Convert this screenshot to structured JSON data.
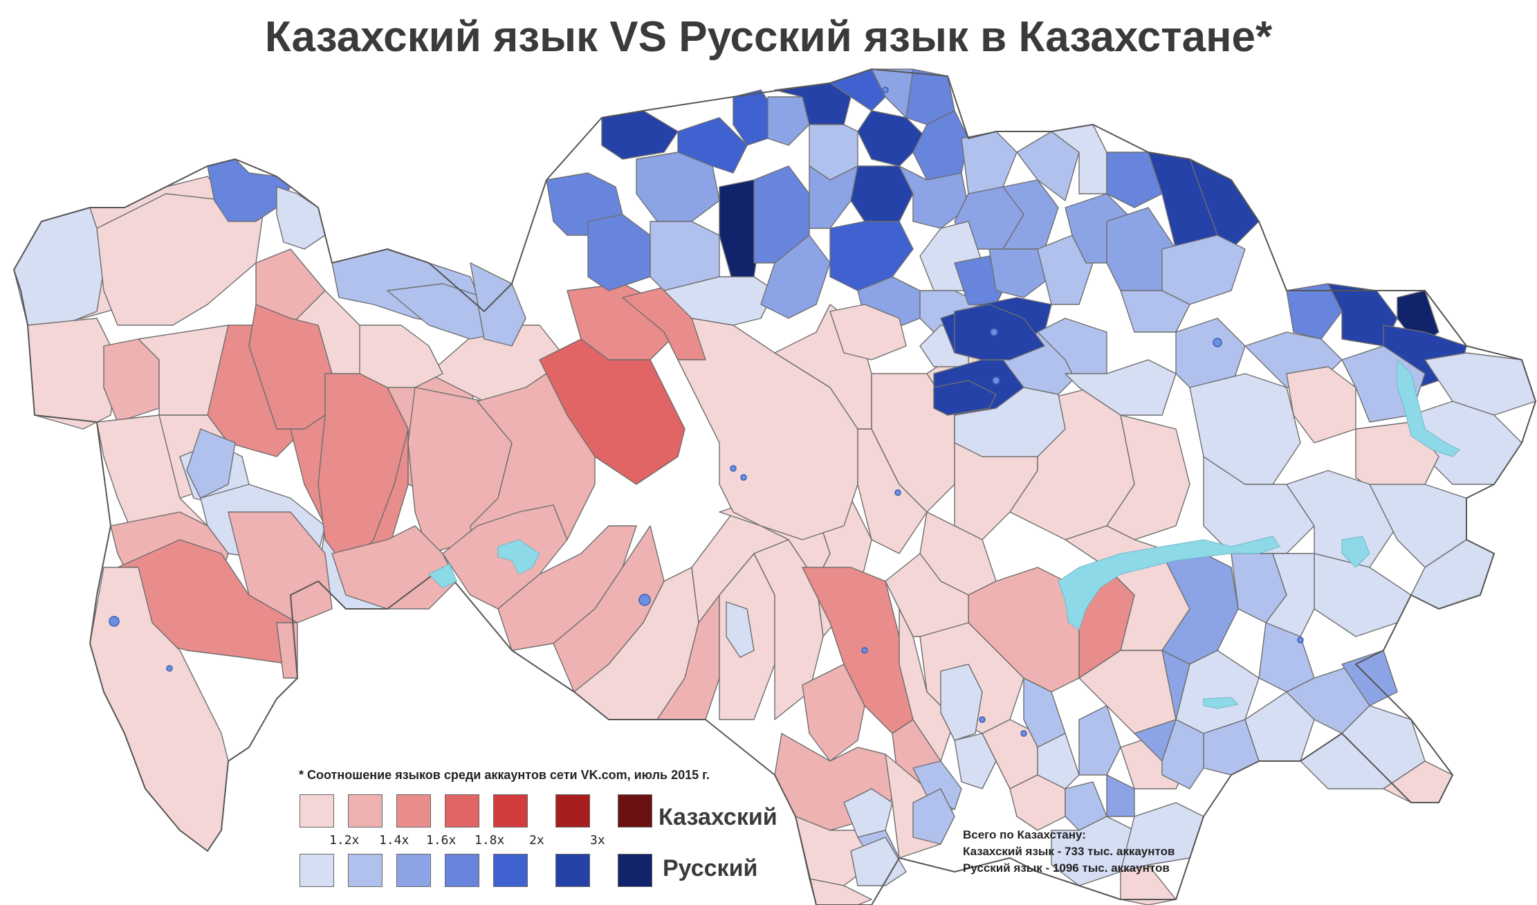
{
  "title": "Казахский язык VS Русский язык в Казахстане*",
  "footnote": "* Соотношение языков среди аккаунтов сети VK.com, июль 2015 г.",
  "legend": {
    "kazakh_label": "Казахский",
    "russian_label": "Русский",
    "thresholds": [
      "1.2x",
      "1.4x",
      "1.6x",
      "1.8x",
      "2x",
      "3x"
    ],
    "kazakh_colors": [
      "#f4d6d6",
      "#eeb2b2",
      "#e88c8c",
      "#e26565",
      "#d23c3c",
      "#a81e1e",
      "#6b1111"
    ],
    "russian_colors": [
      "#d6def4",
      "#b1c1ed",
      "#8ca4e6",
      "#6785dd",
      "#3f62d0",
      "#2442a8",
      "#11236a"
    ]
  },
  "totals": {
    "header": "Всего по Казахстану:",
    "kazakh": "Казахский язык - 733 тыс. аккаунтов",
    "russian": "Русский язык - 1096 тыс. аккаунтов"
  },
  "colors": {
    "lake": "#8ed9e8",
    "background": "#ffffff"
  }
}
